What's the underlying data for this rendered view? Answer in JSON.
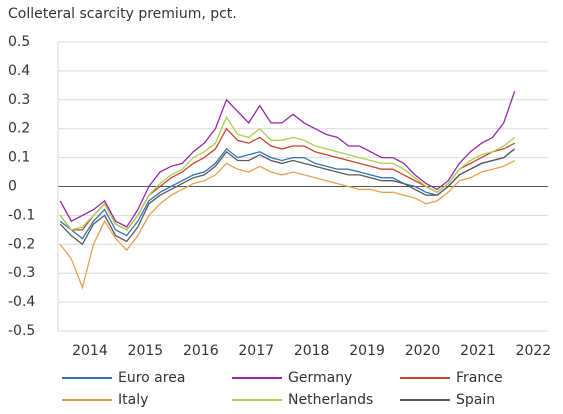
{
  "chart_data": {
    "type": "line",
    "title": "Colleteral scarcity premium, pct.",
    "x": [
      2013.5,
      2013.7,
      2013.9,
      2014.1,
      2014.3,
      2014.5,
      2014.7,
      2014.9,
      2015.1,
      2015.3,
      2015.5,
      2015.7,
      2015.9,
      2016.1,
      2016.3,
      2016.5,
      2016.7,
      2016.9,
      2017.1,
      2017.3,
      2017.5,
      2017.7,
      2017.9,
      2018.1,
      2018.3,
      2018.5,
      2018.7,
      2018.9,
      2019.1,
      2019.3,
      2019.5,
      2019.7,
      2019.9,
      2020.1,
      2020.3,
      2020.5,
      2020.7,
      2020.9,
      2021.1,
      2021.3,
      2021.5,
      2021.7
    ],
    "series": [
      {
        "name": "Euro area",
        "color": "#2e75b6",
        "values": [
          -0.12,
          -0.15,
          -0.18,
          -0.12,
          -0.08,
          -0.15,
          -0.17,
          -0.12,
          -0.05,
          -0.02,
          0.0,
          0.02,
          0.04,
          0.05,
          0.08,
          0.13,
          0.1,
          0.11,
          0.12,
          0.1,
          0.09,
          0.1,
          0.1,
          0.08,
          0.07,
          0.06,
          0.06,
          0.05,
          0.04,
          0.03,
          0.03,
          0.01,
          0.0,
          -0.02,
          -0.03,
          0.0,
          0.04,
          0.06,
          0.08,
          0.09,
          0.1,
          0.13
        ]
      },
      {
        "name": "Germany",
        "color": "#9428a8",
        "values": [
          -0.05,
          -0.12,
          -0.1,
          -0.08,
          -0.05,
          -0.12,
          -0.14,
          -0.08,
          0.0,
          0.05,
          0.07,
          0.08,
          0.12,
          0.15,
          0.2,
          0.3,
          0.26,
          0.22,
          0.28,
          0.22,
          0.22,
          0.25,
          0.22,
          0.2,
          0.18,
          0.17,
          0.14,
          0.14,
          0.12,
          0.1,
          0.1,
          0.08,
          0.04,
          0.01,
          -0.01,
          0.02,
          0.08,
          0.12,
          0.15,
          0.17,
          0.22,
          0.33
        ]
      },
      {
        "name": "France",
        "color": "#c8422b",
        "values": [
          -0.1,
          -0.15,
          -0.15,
          -0.1,
          -0.06,
          -0.13,
          -0.15,
          -0.1,
          -0.03,
          0.0,
          0.03,
          0.05,
          0.08,
          0.1,
          0.13,
          0.2,
          0.16,
          0.15,
          0.17,
          0.14,
          0.13,
          0.14,
          0.14,
          0.12,
          0.11,
          0.1,
          0.09,
          0.08,
          0.07,
          0.06,
          0.06,
          0.04,
          0.02,
          0.0,
          -0.02,
          0.01,
          0.06,
          0.08,
          0.1,
          0.12,
          0.13,
          0.15
        ]
      },
      {
        "name": "Italy",
        "color": "#e8a04e",
        "values": [
          -0.2,
          -0.25,
          -0.35,
          -0.2,
          -0.12,
          -0.18,
          -0.22,
          -0.17,
          -0.1,
          -0.06,
          -0.03,
          -0.01,
          0.01,
          0.02,
          0.04,
          0.08,
          0.06,
          0.05,
          0.07,
          0.05,
          0.04,
          0.05,
          0.04,
          0.03,
          0.02,
          0.01,
          0.0,
          -0.01,
          -0.01,
          -0.02,
          -0.02,
          -0.03,
          -0.04,
          -0.06,
          -0.05,
          -0.02,
          0.02,
          0.03,
          0.05,
          0.06,
          0.07,
          0.09
        ]
      },
      {
        "name": "Netherlands",
        "color": "#a9d04f",
        "values": [
          -0.1,
          -0.15,
          -0.14,
          -0.1,
          -0.06,
          -0.13,
          -0.15,
          -0.1,
          -0.03,
          0.01,
          0.04,
          0.06,
          0.1,
          0.12,
          0.15,
          0.24,
          0.18,
          0.17,
          0.2,
          0.16,
          0.16,
          0.17,
          0.16,
          0.14,
          0.13,
          0.12,
          0.11,
          0.1,
          0.09,
          0.08,
          0.08,
          0.06,
          0.03,
          0.0,
          -0.02,
          0.01,
          0.06,
          0.09,
          0.11,
          0.12,
          0.14,
          0.17
        ]
      },
      {
        "name": "Spain",
        "color": "#595959",
        "values": [
          -0.13,
          -0.17,
          -0.2,
          -0.13,
          -0.1,
          -0.17,
          -0.19,
          -0.14,
          -0.06,
          -0.03,
          -0.01,
          0.01,
          0.03,
          0.04,
          0.07,
          0.12,
          0.09,
          0.09,
          0.11,
          0.09,
          0.08,
          0.09,
          0.08,
          0.07,
          0.06,
          0.05,
          0.04,
          0.04,
          0.03,
          0.02,
          0.02,
          0.01,
          -0.01,
          -0.03,
          -0.03,
          0.0,
          0.04,
          0.06,
          0.08,
          0.09,
          0.1,
          0.13
        ]
      }
    ],
    "xlim": [
      2013.46,
      2022.3
    ],
    "xticks": [
      2014,
      2015,
      2016,
      2017,
      2018,
      2019,
      2020,
      2021,
      2022
    ],
    "ylim": [
      -0.5,
      0.5
    ],
    "yticks": [
      0.5,
      0.4,
      0.3,
      0.2,
      0.1,
      0,
      -0.1,
      -0.2,
      -0.3,
      -0.4,
      -0.5
    ],
    "grid": true,
    "legend": "bottom"
  }
}
